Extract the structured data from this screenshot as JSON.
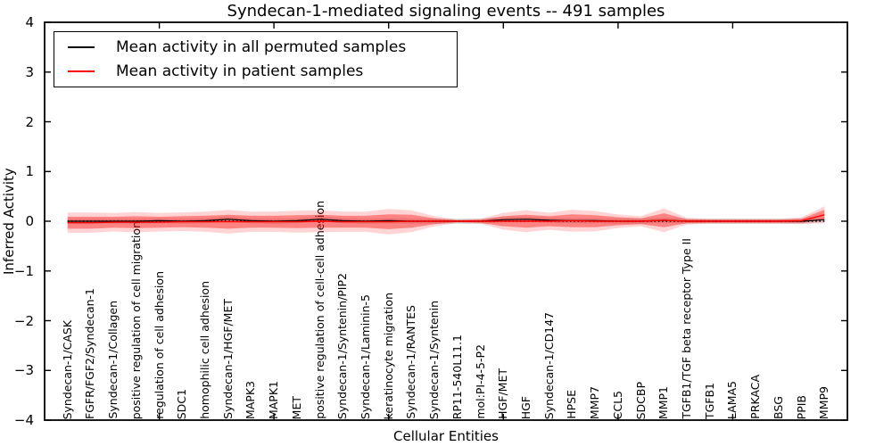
{
  "figure": {
    "kind": "matplotlib-line-plot",
    "background": "#ffffff",
    "spine_color": "#000000"
  },
  "chart_data": {
    "type": "line",
    "title": "Syndecan-1-mediated signaling events -- 491 samples",
    "xlabel": "Cellular Entities",
    "ylabel": "Inferred Activity",
    "xlim": [
      0,
      35
    ],
    "ylim": [
      -4,
      4
    ],
    "yticks": [
      4,
      3,
      2,
      1,
      0,
      -1,
      -2,
      -3,
      -4
    ],
    "xticks": [
      5,
      10,
      15,
      20,
      25,
      30
    ],
    "grid": false,
    "legend_position": "upper left",
    "zero_line": {
      "value": 0,
      "style": "dotted",
      "color": "#000000"
    },
    "categories": [
      "Syndecan-1/CASK",
      "FGFR/FGF2/Syndecan-1",
      "Syndecan-1/Collagen",
      "positive regulation of cell migration",
      "regulation of cell adhesion",
      "SDC1",
      "homophilic cell adhesion",
      "Syndecan-1/HGF/MET",
      "MAPK3",
      "MAPK1",
      "MET",
      "positive regulation of cell-cell adhesion",
      "Syndecan-1/Syntenin/PIP2",
      "Syndecan-1/Laminin-5",
      "keratinocyte migration",
      "Syndecan-1/RANTES",
      "Syndecan-1/Syntenin",
      "RP11-540L11.1",
      "mol:PI-4-5-P2",
      "HGF/MET",
      "HGF",
      "Syndecan-1/CD147",
      "HPSE",
      "MMP7",
      "CCL5",
      "SDCBP",
      "MMP1",
      "TGFB1/TGF beta receptor Type II",
      "TGFB1",
      "LAMA5",
      "PRKACA",
      "BSG",
      "PPIB",
      "MMP9"
    ],
    "series": [
      {
        "name": "Mean activity in all permuted samples",
        "color": "#000000",
        "line_width": 1.2,
        "values": [
          0,
          0,
          0,
          0,
          0.01,
          0,
          0.01,
          0.04,
          0.01,
          0,
          0.01,
          0.04,
          0.01,
          0,
          0.01,
          0,
          0,
          0,
          0,
          0.03,
          0.04,
          0.02,
          0.01,
          0.01,
          0,
          0,
          0.02,
          0,
          0,
          0,
          0,
          0,
          0,
          0.03
        ],
        "band_halfwidth": [
          0.05,
          0.05,
          0.05,
          0.05,
          0.05,
          0.05,
          0.05,
          0.05,
          0.05,
          0.05,
          0.05,
          0.05,
          0.05,
          0.05,
          0.05,
          0.05,
          0.05,
          0.05,
          0.05,
          0.05,
          0.05,
          0.05,
          0.05,
          0.05,
          0.05,
          0.05,
          0.05,
          0.05,
          0.05,
          0.05,
          0.05,
          0.05,
          0.05,
          0.05
        ],
        "band_color": "#888888",
        "band_opacity": 0.3
      },
      {
        "name": "Mean activity in patient samples",
        "color": "#ff0000",
        "line_width": 1.4,
        "values": [
          -0.03,
          -0.03,
          -0.02,
          -0.02,
          -0.02,
          -0.01,
          -0.01,
          -0.01,
          -0.01,
          -0.01,
          -0.01,
          0,
          -0.01,
          -0.01,
          -0.01,
          0,
          0,
          0,
          0,
          0,
          0,
          0,
          0.01,
          0,
          0,
          0,
          0.02,
          0,
          0,
          0,
          0,
          0,
          0.01,
          0.13
        ],
        "band_halfwidth": [
          0.12,
          0.12,
          0.11,
          0.12,
          0.11,
          0.11,
          0.12,
          0.14,
          0.12,
          0.12,
          0.13,
          0.13,
          0.12,
          0.12,
          0.15,
          0.13,
          0.06,
          0.02,
          0.03,
          0.1,
          0.13,
          0.1,
          0.13,
          0.12,
          0.08,
          0.06,
          0.14,
          0.04,
          0.03,
          0.03,
          0.03,
          0.03,
          0.04,
          0.1
        ],
        "band_color": "#ff0000",
        "band_opacity": 0.38,
        "band_halo_scale": 1.7,
        "band_halo_opacity": 0.17
      }
    ]
  }
}
